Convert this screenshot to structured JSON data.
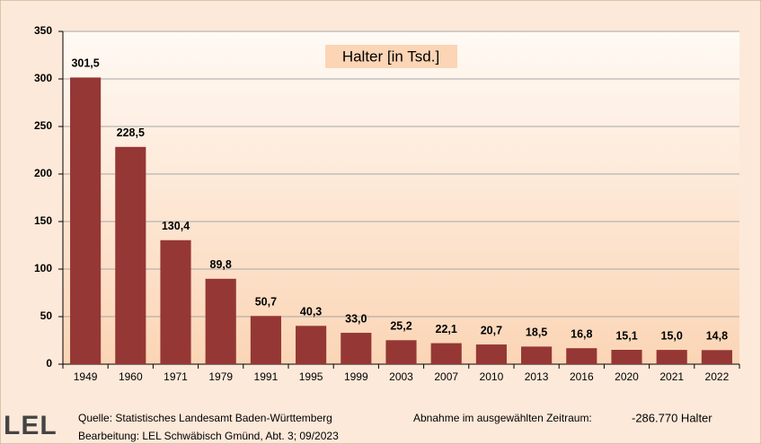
{
  "chart_data": {
    "type": "bar",
    "title": "Halter [in Tsd.]",
    "categories": [
      "1949",
      "1960",
      "1971",
      "1979",
      "1991",
      "1995",
      "1999",
      "2003",
      "2007",
      "2010",
      "2013",
      "2016",
      "2020",
      "2021",
      "2022"
    ],
    "values": [
      301.5,
      228.5,
      130.4,
      89.8,
      50.7,
      40.3,
      33.0,
      25.2,
      22.1,
      20.7,
      18.5,
      16.8,
      15.1,
      15.0,
      14.8
    ],
    "value_labels": [
      "301,5",
      "228,5",
      "130,4",
      "89,8",
      "50,7",
      "40,3",
      "33,0",
      "25,2",
      "22,1",
      "20,7",
      "18,5",
      "16,8",
      "15,1",
      "15,0",
      "14,8"
    ],
    "color": "#953735",
    "ylim": [
      0,
      350
    ],
    "yticks": [
      0,
      50,
      100,
      150,
      200,
      250,
      300,
      350
    ],
    "grid": true
  },
  "footer": {
    "logo": "LEL",
    "source": "Quelle: Statistisches Landesamt Baden-Württemberg",
    "editor": "Bearbeitung: LEL Schwäbisch Gmünd, Abt. 3; 09/2023",
    "summary_label": "Abnahme im ausgewählten Zeitraum:",
    "summary_value": "-286.770 Halter"
  }
}
